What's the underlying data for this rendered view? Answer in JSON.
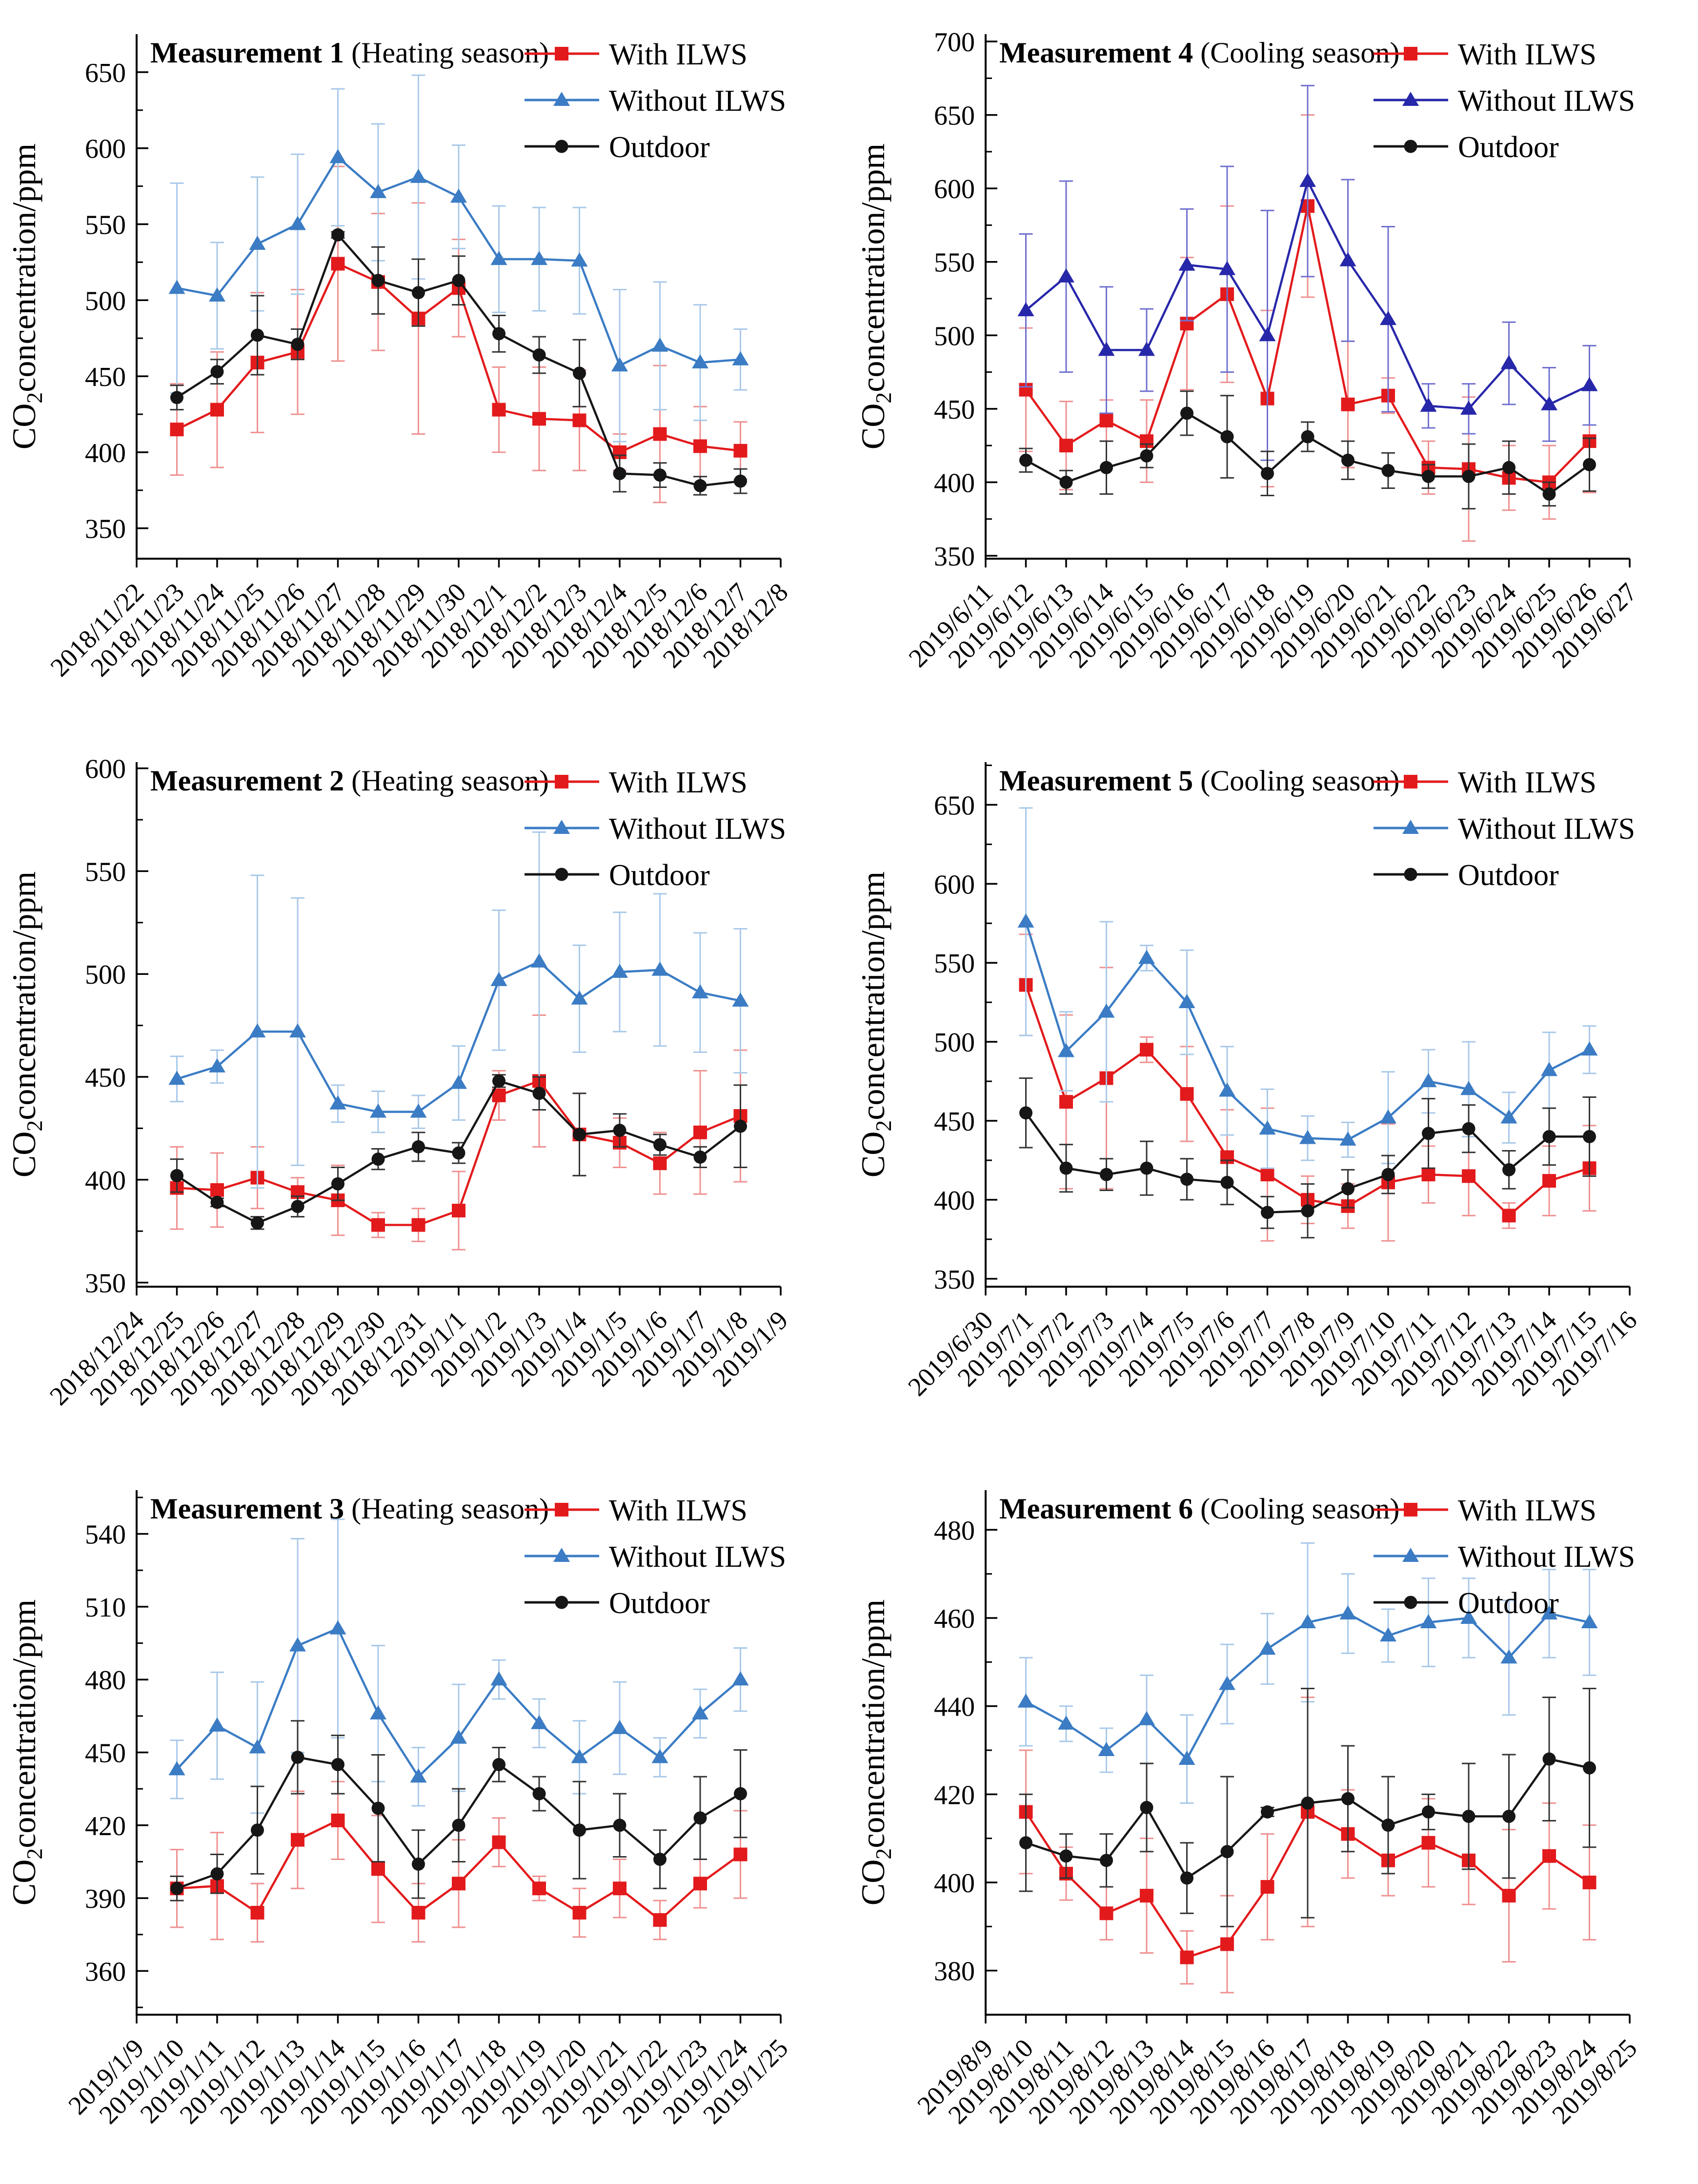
{
  "page": {
    "background": "#ffffff"
  },
  "figure": {
    "ylabel_pre": "CO",
    "ylabel_sub": "2",
    "ylabel_post": "concentration/ppm",
    "legend_labels": [
      "With ILWS",
      "Without ILWS",
      "Outdoor"
    ],
    "colors": {
      "red": "#e31a1c",
      "blue": "#3b7cc4",
      "navy": "#2727aa",
      "black": "#161616"
    }
  },
  "chart_data": [
    {
      "id": "measurement-1",
      "type": "line",
      "title_bold": "Measurement 1",
      "title_rest": " (Heating season)",
      "ylabel": "CO2concentration/ppm",
      "xlabel": "",
      "grid": false,
      "legend_position": "top-right",
      "x_tick_labels": [
        "2018/11/22",
        "2018/11/23",
        "2018/11/24",
        "2018/11/25",
        "2018/11/26",
        "2018/11/27",
        "2018/11/28",
        "2018/11/29",
        "2018/11/30",
        "2018/12/1",
        "2018/12/2",
        "2018/12/3",
        "2018/12/4",
        "2018/12/5",
        "2018/12/6",
        "2018/12/7",
        "2018/12/8"
      ],
      "x_offset": 1,
      "ylim": [
        330,
        675
      ],
      "yticks": [
        350,
        400,
        450,
        500,
        550,
        600,
        650
      ],
      "y_minor_step": 25,
      "series": [
        {
          "name": "With ILWS",
          "marker": "square",
          "color": "#e31a1c",
          "err_color": "#ef9090",
          "values": [
            415,
            428,
            459,
            466,
            524,
            512,
            488,
            508,
            428,
            422,
            421,
            400,
            412,
            404,
            401
          ],
          "err": [
            30,
            38,
            46,
            41,
            64,
            45,
            76,
            32,
            28,
            34,
            33,
            12,
            45,
            26,
            19
          ]
        },
        {
          "name": "Without ILWS",
          "marker": "triangle",
          "color": "#3b7cc4",
          "err_color": "#a9c9e9",
          "values": [
            508,
            503,
            537,
            550,
            594,
            571,
            581,
            568,
            527,
            527,
            526,
            457,
            470,
            459,
            461
          ],
          "err": [
            69,
            35,
            44,
            46,
            45,
            45,
            67,
            34,
            35,
            34,
            35,
            50,
            42,
            38,
            20
          ]
        },
        {
          "name": "Outdoor",
          "marker": "circle",
          "color": "#161616",
          "err_color": "#333333",
          "values": [
            436,
            453,
            477,
            471,
            543,
            513,
            505,
            513,
            478,
            464,
            452,
            386,
            385,
            378,
            381
          ],
          "err": [
            8,
            8,
            26,
            10,
            2,
            22,
            22,
            16,
            12,
            12,
            22,
            12,
            8,
            6,
            8
          ]
        }
      ]
    },
    {
      "id": "measurement-4",
      "type": "line",
      "title_bold": "Measurement 4",
      "title_rest": " (Cooling season)",
      "ylabel": "CO2concentration/ppm",
      "xlabel": "",
      "grid": false,
      "legend_position": "top-right",
      "x_tick_labels": [
        "2019/6/11",
        "2019/6/12",
        "2019/6/13",
        "2019/6/14",
        "2019/6/15",
        "2019/6/16",
        "2019/6/17",
        "2019/6/18",
        "2019/6/19",
        "2019/6/20",
        "2019/6/21",
        "2019/6/22",
        "2019/6/23",
        "2019/6/24",
        "2019/6/25",
        "2019/6/26",
        "2019/6/27"
      ],
      "x_offset": 1,
      "ylim": [
        348,
        705
      ],
      "yticks": [
        350,
        400,
        450,
        500,
        550,
        600,
        650,
        700
      ],
      "y_minor_step": 25,
      "series": [
        {
          "name": "With ILWS",
          "marker": "square",
          "color": "#e31a1c",
          "err_color": "#ef9090",
          "values": [
            463,
            425,
            442,
            428,
            508,
            528,
            457,
            588,
            453,
            459,
            410,
            409,
            403,
            400,
            428
          ],
          "err": [
            42,
            30,
            14,
            28,
            45,
            60,
            60,
            62,
            43,
            12,
            18,
            49,
            22,
            25,
            35
          ]
        },
        {
          "name": "Without ILWS",
          "marker": "triangle",
          "color": "#2727aa",
          "err_color": "#7070d0",
          "values": [
            517,
            540,
            490,
            490,
            548,
            545,
            500,
            605,
            551,
            511,
            452,
            450,
            481,
            453,
            466
          ],
          "err": [
            52,
            65,
            43,
            28,
            38,
            70,
            85,
            65,
            55,
            63,
            15,
            17,
            28,
            25,
            27
          ]
        },
        {
          "name": "Outdoor",
          "marker": "circle",
          "color": "#161616",
          "err_color": "#333333",
          "values": [
            415,
            400,
            410,
            418,
            447,
            431,
            406,
            431,
            415,
            408,
            404,
            404,
            410,
            392,
            412
          ],
          "err": [
            8,
            8,
            18,
            8,
            15,
            28,
            15,
            10,
            13,
            12,
            8,
            22,
            18,
            8,
            18
          ]
        }
      ]
    },
    {
      "id": "measurement-2",
      "type": "line",
      "title_bold": "Measurement 2",
      "title_rest": " (Heating season)",
      "ylabel": "CO2concentration/ppm",
      "xlabel": "",
      "grid": false,
      "legend_position": "top-right",
      "x_tick_labels": [
        "2018/12/24",
        "2018/12/25",
        "2018/12/26",
        "2018/12/27",
        "2018/12/28",
        "2018/12/29",
        "2018/12/30",
        "2018/12/31",
        "2019/1/1",
        "2019/1/2",
        "2019/1/3",
        "2019/1/4",
        "2019/1/5",
        "2019/1/6",
        "2019/1/7",
        "2019/1/8",
        "2019/1/9"
      ],
      "x_offset": 1,
      "ylim": [
        348,
        603
      ],
      "yticks": [
        350,
        400,
        450,
        500,
        550,
        600
      ],
      "y_minor_step": 25,
      "series": [
        {
          "name": "With ILWS",
          "marker": "square",
          "color": "#e31a1c",
          "err_color": "#ef9090",
          "values": [
            396,
            395,
            401,
            394,
            390,
            378,
            378,
            385,
            441,
            448,
            422,
            418,
            408,
            423,
            431
          ],
          "err": [
            20,
            18,
            15,
            7,
            17,
            6,
            8,
            19,
            12,
            32,
            20,
            12,
            15,
            30,
            32
          ]
        },
        {
          "name": "Without ILWS",
          "marker": "triangle",
          "color": "#3b7cc4",
          "err_color": "#a9c9e9",
          "values": [
            449,
            455,
            472,
            472,
            437,
            433,
            433,
            447,
            497,
            506,
            488,
            501,
            502,
            491,
            487
          ],
          "err": [
            11,
            8,
            76,
            65,
            9,
            10,
            8,
            18,
            34,
            63,
            26,
            29,
            37,
            29,
            35
          ]
        },
        {
          "name": "Outdoor",
          "marker": "circle",
          "color": "#161616",
          "err_color": "#333333",
          "values": [
            402,
            389,
            379,
            387,
            398,
            410,
            416,
            413,
            448,
            442,
            422,
            424,
            417,
            411,
            426
          ],
          "err": [
            8,
            2,
            3,
            5,
            8,
            5,
            7,
            5,
            3,
            8,
            20,
            8,
            5,
            5,
            20
          ]
        }
      ]
    },
    {
      "id": "measurement-5",
      "type": "line",
      "title_bold": "Measurement 5",
      "title_rest": " (Cooling season)",
      "ylabel": "CO2concentration/ppm",
      "xlabel": "",
      "grid": false,
      "legend_position": "top-right",
      "x_tick_labels": [
        "2019/6/30",
        "2019/7/1",
        "2019/7/2",
        "2019/7/3",
        "2019/7/4",
        "2019/7/5",
        "2019/7/6",
        "2019/7/7",
        "2019/7/8",
        "2019/7/9",
        "2019/7/10",
        "2019/7/11",
        "2019/7/12",
        "2019/7/13",
        "2019/7/14",
        "2019/7/15",
        "2019/7/16"
      ],
      "x_offset": 1,
      "ylim": [
        345,
        677
      ],
      "yticks": [
        350,
        400,
        450,
        500,
        550,
        600,
        650
      ],
      "y_minor_step": 25,
      "series": [
        {
          "name": "With ILWS",
          "marker": "square",
          "color": "#e31a1c",
          "err_color": "#ef9090",
          "values": [
            536,
            462,
            477,
            495,
            467,
            427,
            416,
            400,
            396,
            411,
            416,
            415,
            390,
            412,
            420
          ],
          "err": [
            32,
            55,
            70,
            8,
            30,
            30,
            42,
            15,
            14,
            37,
            18,
            25,
            8,
            22,
            27
          ]
        },
        {
          "name": "Without ILWS",
          "marker": "triangle",
          "color": "#3b7cc4",
          "err_color": "#a9c9e9",
          "values": [
            576,
            494,
            519,
            553,
            525,
            469,
            445,
            439,
            438,
            452,
            475,
            470,
            452,
            482,
            495
          ],
          "err": [
            72,
            25,
            57,
            8,
            33,
            28,
            25,
            14,
            11,
            29,
            20,
            30,
            16,
            24,
            15
          ]
        },
        {
          "name": "Outdoor",
          "marker": "circle",
          "color": "#161616",
          "err_color": "#333333",
          "values": [
            455,
            420,
            416,
            420,
            413,
            411,
            392,
            393,
            407,
            416,
            442,
            445,
            419,
            440,
            440
          ],
          "err": [
            22,
            15,
            10,
            17,
            13,
            14,
            10,
            17,
            12,
            12,
            22,
            15,
            12,
            18,
            25
          ]
        }
      ]
    },
    {
      "id": "measurement-3",
      "type": "line",
      "title_bold": "Measurement 3",
      "title_rest": " (Heating season)",
      "ylabel": "CO2concentration/ppm",
      "xlabel": "",
      "grid": false,
      "legend_position": "top-right",
      "x_tick_labels": [
        "2019/1/9",
        "2019/1/10",
        "2019/1/11",
        "2019/1/12",
        "2019/1/13",
        "2019/1/14",
        "2019/1/15",
        "2019/1/16",
        "2019/1/17",
        "2019/1/18",
        "2019/1/19",
        "2019/1/20",
        "2019/1/21",
        "2019/1/22",
        "2019/1/23",
        "2019/1/24",
        "2019/1/25"
      ],
      "x_offset": 1,
      "ylim": [
        342,
        558
      ],
      "yticks": [
        360,
        390,
        420,
        450,
        480,
        510,
        540
      ],
      "y_minor_step": 15,
      "series": [
        {
          "name": "With ILWS",
          "marker": "square",
          "color": "#e31a1c",
          "err_color": "#ef9090",
          "values": [
            394,
            395,
            384,
            414,
            422,
            402,
            384,
            396,
            413,
            394,
            384,
            394,
            381,
            396,
            408
          ],
          "err": [
            16,
            22,
            12,
            20,
            16,
            22,
            12,
            18,
            10,
            5,
            10,
            12,
            8,
            10,
            18
          ]
        },
        {
          "name": "Without ILWS",
          "marker": "triangle",
          "color": "#3b7cc4",
          "err_color": "#a9c9e9",
          "values": [
            443,
            461,
            452,
            494,
            501,
            466,
            440,
            456,
            480,
            462,
            448,
            460,
            448,
            466,
            480
          ],
          "err": [
            12,
            22,
            27,
            44,
            45,
            28,
            12,
            22,
            8,
            10,
            15,
            19,
            8,
            10,
            13
          ]
        },
        {
          "name": "Outdoor",
          "marker": "circle",
          "color": "#161616",
          "err_color": "#333333",
          "values": [
            394,
            400,
            418,
            448,
            445,
            427,
            404,
            420,
            445,
            433,
            418,
            420,
            406,
            423,
            433
          ],
          "err": [
            5,
            8,
            18,
            15,
            12,
            22,
            14,
            15,
            7,
            7,
            20,
            13,
            12,
            17,
            18
          ]
        }
      ]
    },
    {
      "id": "measurement-6",
      "type": "line",
      "title_bold": "Measurement 6",
      "title_rest": " (Cooling season)",
      "ylabel": "CO2concentration/ppm",
      "xlabel": "",
      "grid": false,
      "legend_position": "top-right",
      "x_tick_labels": [
        "2019/8/9",
        "2019/8/10",
        "2019/8/11",
        "2019/8/12",
        "2019/8/13",
        "2019/8/14",
        "2019/8/15",
        "2019/8/16",
        "2019/8/17",
        "2019/8/18",
        "2019/8/19",
        "2019/8/20",
        "2019/8/21",
        "2019/8/22",
        "2019/8/23",
        "2019/8/24",
        "2019/8/25"
      ],
      "x_offset": 1,
      "ylim": [
        370,
        489
      ],
      "yticks": [
        380,
        400,
        420,
        440,
        460,
        480
      ],
      "y_minor_step": 10,
      "series": [
        {
          "name": "With ILWS",
          "marker": "square",
          "color": "#e31a1c",
          "err_color": "#ef9090",
          "values": [
            416,
            402,
            393,
            397,
            383,
            386,
            399,
            416,
            411,
            405,
            409,
            405,
            397,
            406,
            400
          ],
          "err": [
            14,
            6,
            6,
            13,
            6,
            11,
            12,
            26,
            10,
            8,
            10,
            10,
            15,
            12,
            13
          ]
        },
        {
          "name": "Without ILWS",
          "marker": "triangle",
          "color": "#3b7cc4",
          "err_color": "#a9c9e9",
          "values": [
            441,
            436,
            430,
            437,
            428,
            445,
            453,
            459,
            461,
            456,
            459,
            460,
            451,
            461,
            459
          ],
          "err": [
            10,
            4,
            5,
            10,
            10,
            9,
            8,
            18,
            9,
            6,
            10,
            9,
            13,
            10,
            12
          ]
        },
        {
          "name": "Outdoor",
          "marker": "circle",
          "color": "#161616",
          "err_color": "#333333",
          "values": [
            409,
            406,
            405,
            417,
            401,
            407,
            416,
            418,
            419,
            413,
            416,
            415,
            415,
            428,
            426
          ],
          "err": [
            11,
            5,
            6,
            10,
            8,
            17,
            1,
            26,
            12,
            11,
            4,
            12,
            14,
            14,
            18
          ]
        }
      ]
    }
  ]
}
